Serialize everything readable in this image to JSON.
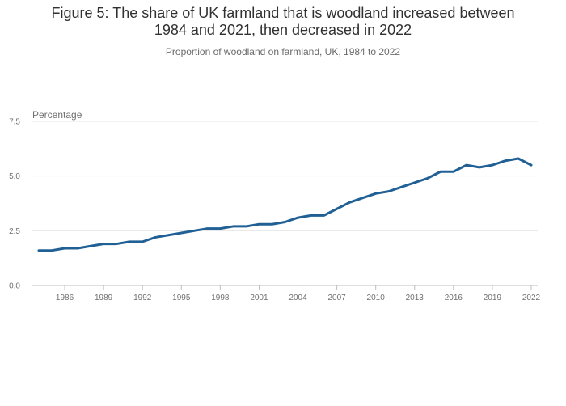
{
  "chart_data": {
    "type": "line",
    "title_lines": [
      "Figure 5: The share of UK farmland that is woodland increased between",
      "1984 and 2021, then decreased in 2022"
    ],
    "subtitle": "Proportion of woodland on farmland, UK, 1984 to 2022",
    "ylabel": "Percentage",
    "xlabel": "",
    "ylim": [
      0,
      7.5
    ],
    "yticks": [
      "0.0",
      "2.5",
      "5.0",
      "7.5"
    ],
    "xticks": [
      "1986",
      "1989",
      "1992",
      "1995",
      "1998",
      "2001",
      "2004",
      "2007",
      "2010",
      "2013",
      "2016",
      "2019",
      "2022"
    ],
    "grid": true,
    "series_color": "#206095",
    "x": [
      1984,
      1985,
      1986,
      1987,
      1988,
      1989,
      1990,
      1991,
      1992,
      1993,
      1994,
      1995,
      1996,
      1997,
      1998,
      1999,
      2000,
      2001,
      2002,
      2003,
      2004,
      2005,
      2006,
      2007,
      2008,
      2009,
      2010,
      2011,
      2012,
      2013,
      2014,
      2015,
      2016,
      2017,
      2018,
      2019,
      2020,
      2021,
      2022
    ],
    "values": [
      1.6,
      1.6,
      1.7,
      1.7,
      1.8,
      1.9,
      1.9,
      2.0,
      2.0,
      2.2,
      2.3,
      2.4,
      2.5,
      2.6,
      2.6,
      2.7,
      2.7,
      2.8,
      2.8,
      2.9,
      3.1,
      3.2,
      3.2,
      3.5,
      3.8,
      4.0,
      4.2,
      4.3,
      4.5,
      4.7,
      4.9,
      5.2,
      5.2,
      5.5,
      5.4,
      5.5,
      5.7,
      5.8,
      5.5
    ]
  }
}
